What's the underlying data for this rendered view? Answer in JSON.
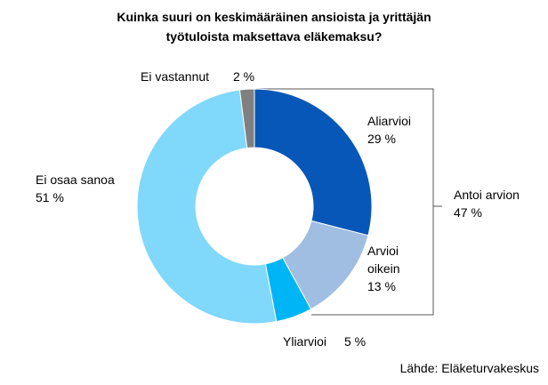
{
  "chart_data": {
    "type": "donut",
    "title": "Kuinka suuri on keskimääräinen ansioista ja yrittäjän työtuloista maksettava eläkemaksu?",
    "categories": [
      "Aliarvioi",
      "Arvioi oikein",
      "Yliarvioi",
      "Ei osaa sanoa",
      "Ei vastannut"
    ],
    "values": [
      29,
      13,
      5,
      51,
      2
    ],
    "value_labels": [
      "29 %",
      "13 %",
      "5 %",
      "51 %",
      "2 %"
    ],
    "colors": [
      "#0757b8",
      "#a0bde2",
      "#00b5f5",
      "#80d8fb",
      "#808080"
    ],
    "annotation": {
      "text": "Antoi arvion",
      "value": 47,
      "value_label": "47 %"
    },
    "source": "Lähde: Eläketurvakeskus"
  }
}
